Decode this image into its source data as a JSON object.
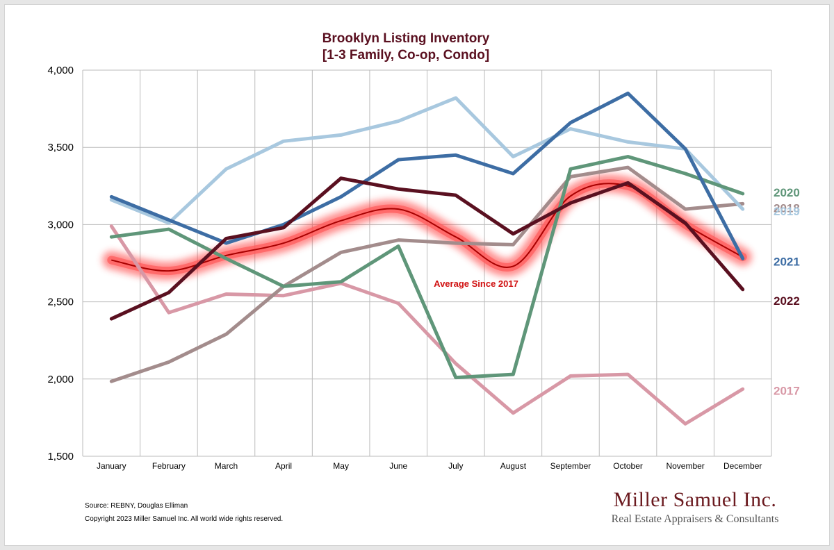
{
  "chart_data": {
    "type": "line",
    "title_line1": "Brooklyn Listing Inventory",
    "title_line2": "[1-3 Family, Co-op, Condo]",
    "categories": [
      "January",
      "February",
      "March",
      "April",
      "May",
      "June",
      "July",
      "August",
      "September",
      "October",
      "November",
      "December"
    ],
    "ylim": [
      1500,
      4000
    ],
    "y_ticks": [
      1500,
      2000,
      2500,
      3000,
      3500,
      4000
    ],
    "y_tick_labels": [
      "1,500",
      "2,000",
      "2,500",
      "3,000",
      "3,500",
      "4,000"
    ],
    "grid": true,
    "legend": "right-side labels",
    "series": [
      {
        "name": "2017",
        "color": "#d898a6",
        "values": [
          2990,
          2430,
          2550,
          2540,
          2620,
          2490,
          2100,
          1780,
          2020,
          2030,
          1710,
          1935
        ]
      },
      {
        "name": "2018",
        "color": "#a38c8c",
        "values": [
          1985,
          2110,
          2290,
          2600,
          2820,
          2900,
          2880,
          2870,
          3310,
          3370,
          3100,
          3135
        ]
      },
      {
        "name": "2019",
        "color": "#a8c8df",
        "values": [
          3160,
          3010,
          3360,
          3540,
          3580,
          3670,
          3820,
          3440,
          3620,
          3535,
          3490,
          3100
        ]
      },
      {
        "name": "2020",
        "color": "#5f9679",
        "values": [
          2920,
          2970,
          2780,
          2600,
          2630,
          2860,
          2010,
          2030,
          3360,
          3440,
          3330,
          3200
        ]
      },
      {
        "name": "2021",
        "color": "#3d6da4",
        "values": [
          3180,
          3030,
          2880,
          3000,
          3180,
          3420,
          3450,
          3330,
          3660,
          3850,
          3490,
          2780
        ]
      },
      {
        "name": "2022",
        "color": "#5a1020",
        "values": [
          2390,
          2560,
          2910,
          2980,
          3300,
          3230,
          3190,
          2940,
          3140,
          3270,
          3010,
          2580
        ]
      }
    ],
    "average": {
      "label": "Average  Since 2017",
      "color": "#e41a1a",
      "values": [
        2770,
        2700,
        2800,
        2880,
        3025,
        3100,
        2920,
        2730,
        3185,
        3250,
        3000,
        2790
      ]
    },
    "series_label_order": [
      "2020",
      "2018",
      "2019",
      "2021",
      "2022",
      "2017"
    ]
  },
  "footer": {
    "source": "Source: REBNY, Douglas Elliman",
    "copyright": "Copyright 2023 Miller Samuel Inc.  All world wide rights reserved."
  },
  "logo": {
    "name": "Miller Samuel Inc.",
    "tagline": "Real Estate Appraisers & Consultants"
  },
  "colors": {
    "title": "#5a1020",
    "grid": "#bbbbbb"
  }
}
